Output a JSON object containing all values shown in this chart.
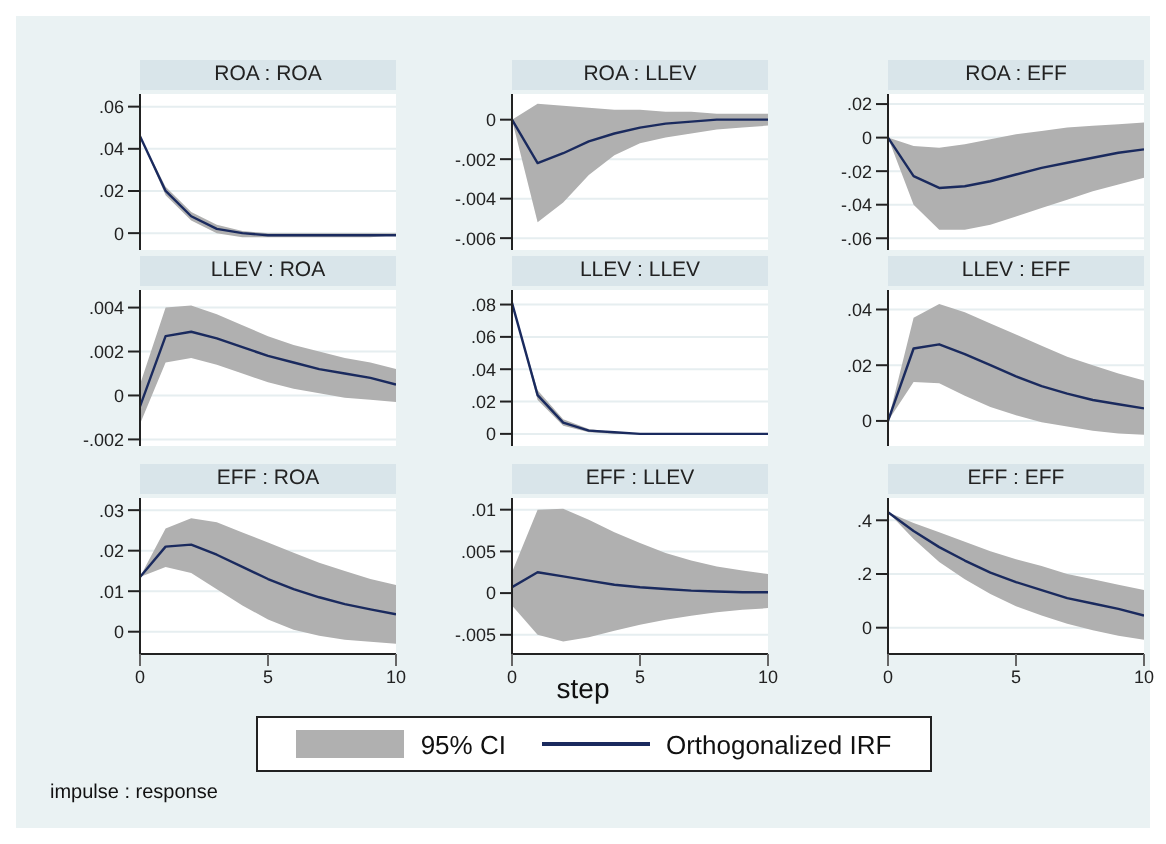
{
  "chart_data": [
    {
      "type": "line",
      "title": "ROA : ROA",
      "x": [
        0,
        1,
        2,
        3,
        4,
        5,
        6,
        7,
        8,
        9,
        10
      ],
      "xlim": [
        0,
        10
      ],
      "xticks": [
        0,
        5,
        10
      ],
      "ylim": [
        -0.008,
        0.066
      ],
      "yticks": [
        {
          "value": 0,
          "label": "0"
        },
        {
          "value": 0.02,
          "label": ".02"
        },
        {
          "value": 0.04,
          "label": ".04"
        },
        {
          "value": 0.06,
          "label": ".06"
        }
      ],
      "grid": "y",
      "tick_labels": "y",
      "series": [
        {
          "color": "#1a2a5e",
          "values": [
            0.046,
            0.02,
            0.008,
            0.002,
            0,
            -0.001,
            -0.001,
            -0.001,
            -0.001,
            -0.001,
            -0.001
          ],
          "lower": [
            0.046,
            0.018,
            0.006,
            0,
            -0.002,
            -0.002,
            -0.002,
            -0.002,
            -0.002,
            -0.002,
            -0.001
          ],
          "upper": [
            0.046,
            0.022,
            0.01,
            0.004,
            0.001,
            0,
            0,
            0,
            0,
            0,
            0
          ]
        }
      ]
    },
    {
      "type": "line",
      "title": "ROA : LLEV",
      "x": [
        0,
        1,
        2,
        3,
        4,
        5,
        6,
        7,
        8,
        9,
        10
      ],
      "xlim": [
        0,
        10
      ],
      "xticks": [
        0,
        5,
        10
      ],
      "ylim": [
        -0.0066,
        0.0013
      ],
      "yticks": [
        {
          "value": -0.006,
          "label": "-.006"
        },
        {
          "value": -0.004,
          "label": "-.004"
        },
        {
          "value": -0.002,
          "label": "-.002"
        },
        {
          "value": 0,
          "label": "0"
        }
      ],
      "grid": "y",
      "tick_labels": "y",
      "series": [
        {
          "color": "#1a2a5e",
          "values": [
            0,
            -0.0022,
            -0.0017,
            -0.0011,
            -0.0007,
            -0.0004,
            -0.0002,
            -0.0001,
            0,
            0,
            0
          ],
          "lower": [
            0,
            -0.0052,
            -0.0042,
            -0.0028,
            -0.0018,
            -0.0012,
            -0.0009,
            -0.0007,
            -0.0005,
            -0.0004,
            -0.0003
          ],
          "upper": [
            0,
            0.0008,
            0.0007,
            0.0006,
            0.0005,
            0.0005,
            0.0004,
            0.0004,
            0.0003,
            0.0003,
            0.0003
          ]
        }
      ]
    },
    {
      "type": "line",
      "title": "ROA : EFF",
      "x": [
        0,
        1,
        2,
        3,
        4,
        5,
        6,
        7,
        8,
        9,
        10
      ],
      "xlim": [
        0,
        10
      ],
      "xticks": [
        0,
        5,
        10
      ],
      "ylim": [
        -0.067,
        0.026
      ],
      "yticks": [
        {
          "value": -0.06,
          "label": "-.06"
        },
        {
          "value": -0.04,
          "label": "-.04"
        },
        {
          "value": -0.02,
          "label": "-.02"
        },
        {
          "value": 0,
          "label": "0"
        },
        {
          "value": 0.02,
          "label": ".02"
        }
      ],
      "grid": "y",
      "tick_labels": "y",
      "series": [
        {
          "color": "#1a2a5e",
          "values": [
            0,
            -0.023,
            -0.03,
            -0.029,
            -0.026,
            -0.022,
            -0.018,
            -0.015,
            -0.012,
            -0.009,
            -0.007
          ],
          "lower": [
            0,
            -0.04,
            -0.055,
            -0.055,
            -0.052,
            -0.047,
            -0.042,
            -0.037,
            -0.032,
            -0.028,
            -0.024
          ],
          "upper": [
            0,
            -0.005,
            -0.006,
            -0.004,
            -0.001,
            0.002,
            0.004,
            0.006,
            0.007,
            0.008,
            0.009
          ]
        }
      ]
    },
    {
      "type": "line",
      "title": "LLEV : ROA",
      "x": [
        0,
        1,
        2,
        3,
        4,
        5,
        6,
        7,
        8,
        9,
        10
      ],
      "xlim": [
        0,
        10
      ],
      "xticks": [
        0,
        5,
        10
      ],
      "ylim": [
        -0.0023,
        0.0048
      ],
      "yticks": [
        {
          "value": -0.002,
          "label": "-.002"
        },
        {
          "value": 0,
          "label": "0"
        },
        {
          "value": 0.002,
          "label": ".002"
        },
        {
          "value": 0.004,
          "label": ".004"
        }
      ],
      "grid": "y",
      "tick_labels": "y",
      "series": [
        {
          "color": "#1a2a5e",
          "values": [
            -0.0005,
            0.0027,
            0.0029,
            0.0026,
            0.0022,
            0.0018,
            0.0015,
            0.0012,
            0.001,
            0.0008,
            0.0005
          ],
          "lower": [
            -0.0013,
            0.0015,
            0.0017,
            0.0014,
            0.001,
            0.0006,
            0.0003,
            0.0001,
            -0.0001,
            -0.0002,
            -0.0003
          ],
          "upper": [
            0.0005,
            0.004,
            0.0041,
            0.0037,
            0.0032,
            0.0027,
            0.0023,
            0.002,
            0.0017,
            0.0015,
            0.0012
          ]
        }
      ]
    },
    {
      "type": "line",
      "title": "LLEV : LLEV",
      "x": [
        0,
        1,
        2,
        3,
        4,
        5,
        6,
        7,
        8,
        9,
        10
      ],
      "xlim": [
        0,
        10
      ],
      "xticks": [
        0,
        5,
        10
      ],
      "ylim": [
        -0.0075,
        0.089
      ],
      "yticks": [
        {
          "value": 0,
          "label": "0"
        },
        {
          "value": 0.02,
          "label": ".02"
        },
        {
          "value": 0.04,
          "label": ".04"
        },
        {
          "value": 0.06,
          "label": ".06"
        },
        {
          "value": 0.08,
          "label": ".08"
        }
      ],
      "grid": "y",
      "tick_labels": "y",
      "series": [
        {
          "color": "#1a2a5e",
          "values": [
            0.081,
            0.024,
            0.007,
            0.002,
            0.001,
            0,
            0,
            0,
            0,
            0,
            0
          ],
          "lower": [
            0.081,
            0.021,
            0.005,
            0.001,
            0,
            0,
            0,
            0,
            0,
            0,
            0
          ],
          "upper": [
            0.081,
            0.027,
            0.009,
            0.003,
            0.001,
            0,
            0,
            0,
            0,
            0,
            0
          ]
        }
      ]
    },
    {
      "type": "line",
      "title": "LLEV : EFF",
      "x": [
        0,
        1,
        2,
        3,
        4,
        5,
        6,
        7,
        8,
        9,
        10
      ],
      "xlim": [
        0,
        10
      ],
      "xticks": [
        0,
        5,
        10
      ],
      "ylim": [
        -0.009,
        0.047
      ],
      "yticks": [
        {
          "value": 0,
          "label": "0"
        },
        {
          "value": 0.02,
          "label": ".02"
        },
        {
          "value": 0.04,
          "label": ".04"
        }
      ],
      "grid": "y",
      "tick_labels": "y",
      "series": [
        {
          "color": "#1a2a5e",
          "values": [
            0,
            0.026,
            0.0275,
            0.024,
            0.02,
            0.016,
            0.0125,
            0.0098,
            0.0075,
            0.006,
            0.0045
          ],
          "lower": [
            0,
            0.014,
            0.0135,
            0.009,
            0.005,
            0.002,
            -0.0005,
            -0.002,
            -0.0035,
            -0.0045,
            -0.005
          ],
          "upper": [
            0,
            0.037,
            0.042,
            0.039,
            0.035,
            0.031,
            0.027,
            0.023,
            0.02,
            0.017,
            0.0145
          ]
        }
      ]
    },
    {
      "type": "line",
      "title": "EFF : ROA",
      "annotations": [
        "impulse : response"
      ],
      "x": [
        0,
        1,
        2,
        3,
        4,
        5,
        6,
        7,
        8,
        9,
        10
      ],
      "xlim": [
        0,
        10
      ],
      "xticks": [
        0,
        5,
        10
      ],
      "ylim": [
        -0.0055,
        0.033
      ],
      "yticks": [
        {
          "value": 0,
          "label": "0"
        },
        {
          "value": 0.01,
          "label": ".01"
        },
        {
          "value": 0.02,
          "label": ".02"
        },
        {
          "value": 0.03,
          "label": ".03"
        }
      ],
      "grid": "y",
      "series": [
        {
          "color": "#1a2a5e",
          "values": [
            0.0135,
            0.021,
            0.0215,
            0.019,
            0.016,
            0.013,
            0.0105,
            0.0085,
            0.0068,
            0.0055,
            0.0043
          ],
          "lower": [
            0.0135,
            0.016,
            0.0145,
            0.0105,
            0.0065,
            0.003,
            0.0005,
            -0.001,
            -0.002,
            -0.0025,
            -0.003
          ],
          "upper": [
            0.0135,
            0.0255,
            0.028,
            0.027,
            0.0245,
            0.022,
            0.0195,
            0.017,
            0.015,
            0.013,
            0.0115
          ]
        }
      ]
    },
    {
      "type": "line",
      "title": "EFF : LLEV",
      "xlabel": "step",
      "legend": "bottom",
      "legend_title": "95% CI",
      "x": [
        0,
        1,
        2,
        3,
        4,
        5,
        6,
        7,
        8,
        9,
        10
      ],
      "xlim": [
        0,
        10
      ],
      "xticks": [
        0,
        5,
        10
      ],
      "ylim": [
        -0.0073,
        0.0114
      ],
      "yticks": [
        {
          "value": -0.005,
          "label": "-.005"
        },
        {
          "value": 0,
          "label": "0"
        },
        {
          "value": 0.005,
          "label": ".005"
        },
        {
          "value": 0.01,
          "label": ".01"
        }
      ],
      "grid": "y",
      "series": [
        {
          "name": "Orthogonalized IRF",
          "color": "#1a2a5e",
          "values": [
            0.0007,
            0.0025,
            0.002,
            0.0015,
            0.001,
            0.0007,
            0.0005,
            0.0003,
            0.0002,
            0.0001,
            0.0001
          ],
          "lower": [
            -0.0015,
            -0.005,
            -0.0058,
            -0.0053,
            -0.0045,
            -0.0038,
            -0.0032,
            -0.0027,
            -0.0023,
            -0.002,
            -0.0018
          ],
          "upper": [
            0.0025,
            0.01,
            0.0101,
            0.0088,
            0.0073,
            0.006,
            0.0048,
            0.0039,
            0.0032,
            0.0027,
            0.0023
          ]
        }
      ]
    },
    {
      "type": "line",
      "title": "EFF : EFF",
      "x": [
        0,
        1,
        2,
        3,
        4,
        5,
        6,
        7,
        8,
        9,
        10
      ],
      "xlim": [
        0,
        10
      ],
      "xticks": [
        0,
        5,
        10
      ],
      "ylim": [
        -0.098,
        0.483
      ],
      "yticks": [
        {
          "value": 0,
          "label": "0"
        },
        {
          "value": 0.2,
          "label": ".2"
        },
        {
          "value": 0.4,
          "label": ".4"
        }
      ],
      "grid": "y",
      "series": [
        {
          "color": "#1a2a5e",
          "values": [
            0.43,
            0.36,
            0.3,
            0.25,
            0.205,
            0.17,
            0.14,
            0.11,
            0.09,
            0.07,
            0.045
          ],
          "lower": [
            0.43,
            0.33,
            0.245,
            0.18,
            0.125,
            0.08,
            0.045,
            0.015,
            -0.01,
            -0.03,
            -0.045
          ],
          "upper": [
            0.43,
            0.39,
            0.355,
            0.32,
            0.285,
            0.255,
            0.23,
            0.2,
            0.18,
            0.16,
            0.14
          ]
        }
      ]
    }
  ]
}
